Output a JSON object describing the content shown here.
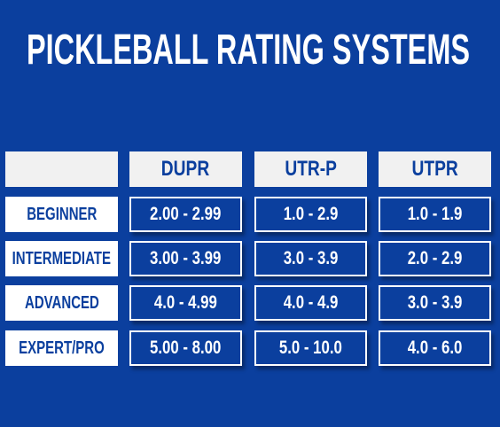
{
  "header": {
    "title": "PICKLEBALL RATING SYSTEMS"
  },
  "table": {
    "columns": [
      "DUPR",
      "UTR-P",
      "UTPR"
    ],
    "rows": [
      {
        "label": "BEGINNER",
        "cells": [
          "2.00 - 2.99",
          "1.0 - 2.9",
          "1.0 - 1.9"
        ]
      },
      {
        "label": "INTERMEDIATE",
        "cells": [
          "3.00 - 3.99",
          "3.0 - 3.9",
          "2.0 - 2.9"
        ]
      },
      {
        "label": "ADVANCED",
        "cells": [
          "4.0 - 4.99",
          "4.0 - 4.9",
          "3.0 - 3.9"
        ]
      },
      {
        "label": "EXPERT/PRO",
        "cells": [
          "5.00 - 8.00",
          "5.0 - 10.0",
          "4.0 - 6.0"
        ]
      }
    ]
  }
}
